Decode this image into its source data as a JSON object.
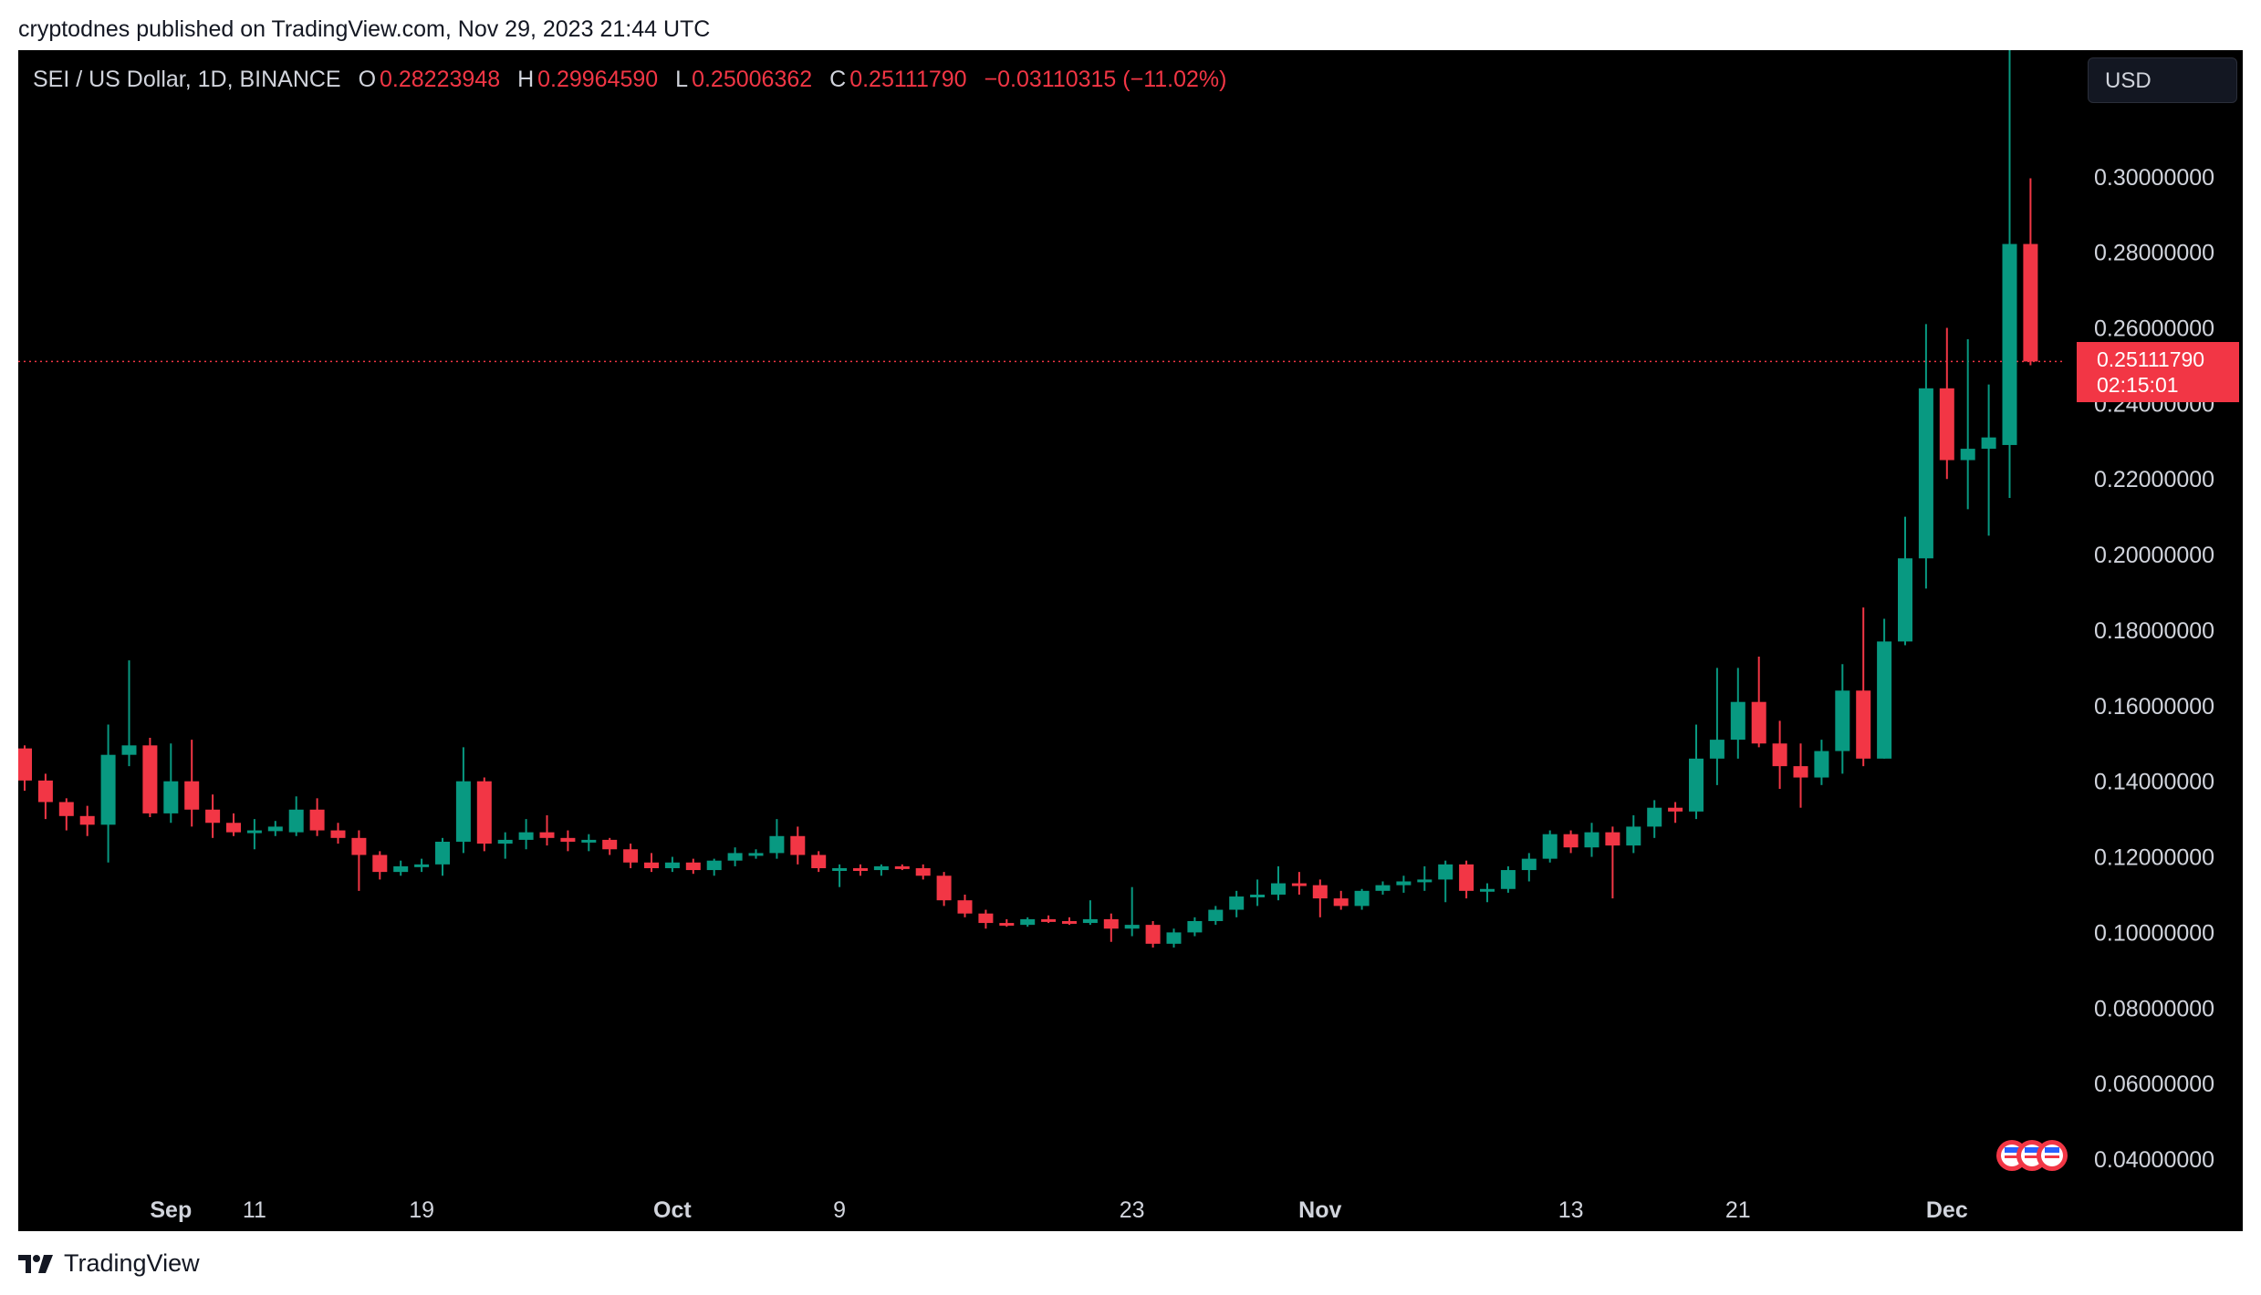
{
  "publisher_text": "cryptodnes published on TradingView.com, Nov 29, 2023 21:44 UTC",
  "symbol": {
    "title": "SEI / US Dollar, 1D, BINANCE",
    "open_label": "O",
    "open": "0.28223948",
    "high_label": "H",
    "high": "0.29964590",
    "low_label": "L",
    "low": "0.25006362",
    "close_label": "C",
    "close": "0.25111790",
    "change": "−0.03110315 (−11.02%)"
  },
  "currency": "USD",
  "price_tag": {
    "price": "0.25111790",
    "countdown": "02:15:01"
  },
  "footer_brand": "TradingView",
  "colors": {
    "up": "#089981",
    "down": "#f23645",
    "background": "#000000",
    "text": "#d1d4dc"
  },
  "chart_data": {
    "type": "candlestick",
    "y_range": [
      0.033,
      0.3335
    ],
    "y_ticks": [
      "0.30000000",
      "0.28000000",
      "0.26000000",
      "0.24000000",
      "0.22000000",
      "0.20000000",
      "0.18000000",
      "0.16000000",
      "0.14000000",
      "0.12000000",
      "0.10000000",
      "0.08000000",
      "0.06000000",
      "0.04000000"
    ],
    "x_labels": [
      {
        "text": "Sep",
        "day": 7,
        "bold": true
      },
      {
        "text": "11",
        "day": 11,
        "bold": false
      },
      {
        "text": "19",
        "day": 19,
        "bold": false
      },
      {
        "text": "Oct",
        "day": 31,
        "bold": true
      },
      {
        "text": "9",
        "day": 39,
        "bold": false
      },
      {
        "text": "23",
        "day": 53,
        "bold": false
      },
      {
        "text": "Nov",
        "day": 62,
        "bold": true
      },
      {
        "text": "13",
        "day": 74,
        "bold": false
      },
      {
        "text": "21",
        "day": 82,
        "bold": false
      },
      {
        "text": "Dec",
        "day": 92,
        "bold": true
      }
    ],
    "last_price": 0.2511179,
    "candles": [
      [
        0.1487,
        0.1495,
        0.1375,
        0.1402
      ],
      [
        0.1402,
        0.142,
        0.13,
        0.1345
      ],
      [
        0.1345,
        0.1355,
        0.127,
        0.1308
      ],
      [
        0.1308,
        0.1335,
        0.1255,
        0.1285
      ],
      [
        0.1285,
        0.155,
        0.1185,
        0.147
      ],
      [
        0.147,
        0.172,
        0.144,
        0.1495
      ],
      [
        0.1495,
        0.1515,
        0.1305,
        0.1315
      ],
      [
        0.1315,
        0.15,
        0.129,
        0.14
      ],
      [
        0.14,
        0.151,
        0.128,
        0.1325
      ],
      [
        0.1325,
        0.1365,
        0.125,
        0.129
      ],
      [
        0.129,
        0.1315,
        0.1255,
        0.1265
      ],
      [
        0.1265,
        0.13,
        0.122,
        0.127
      ],
      [
        0.1268,
        0.1295,
        0.1255,
        0.128
      ],
      [
        0.1265,
        0.136,
        0.1255,
        0.1325
      ],
      [
        0.1325,
        0.1355,
        0.1255,
        0.127
      ],
      [
        0.127,
        0.129,
        0.1235,
        0.125
      ],
      [
        0.125,
        0.127,
        0.111,
        0.1205
      ],
      [
        0.1205,
        0.1215,
        0.114,
        0.116
      ],
      [
        0.116,
        0.119,
        0.115,
        0.1175
      ],
      [
        0.1175,
        0.1195,
        0.116,
        0.118
      ],
      [
        0.118,
        0.125,
        0.115,
        0.124
      ],
      [
        0.124,
        0.149,
        0.121,
        0.14
      ],
      [
        0.14,
        0.141,
        0.1215,
        0.1235
      ],
      [
        0.1235,
        0.1265,
        0.1195,
        0.1245
      ],
      [
        0.1245,
        0.13,
        0.122,
        0.1265
      ],
      [
        0.1265,
        0.131,
        0.123,
        0.125
      ],
      [
        0.125,
        0.127,
        0.1215,
        0.124
      ],
      [
        0.124,
        0.126,
        0.1215,
        0.1245
      ],
      [
        0.1245,
        0.125,
        0.1205,
        0.122
      ],
      [
        0.122,
        0.1235,
        0.117,
        0.1185
      ],
      [
        0.1185,
        0.121,
        0.116,
        0.117
      ],
      [
        0.117,
        0.12,
        0.116,
        0.1185
      ],
      [
        0.1185,
        0.1195,
        0.1155,
        0.1165
      ],
      [
        0.1165,
        0.1195,
        0.115,
        0.119
      ],
      [
        0.119,
        0.1225,
        0.1175,
        0.121
      ],
      [
        0.1205,
        0.122,
        0.1195,
        0.121
      ],
      [
        0.121,
        0.13,
        0.1195,
        0.1255
      ],
      [
        0.1255,
        0.128,
        0.118,
        0.1205
      ],
      [
        0.1205,
        0.1215,
        0.116,
        0.117
      ],
      [
        0.1165,
        0.118,
        0.112,
        0.117
      ],
      [
        0.117,
        0.118,
        0.115,
        0.1165
      ],
      [
        0.1165,
        0.118,
        0.115,
        0.1175
      ],
      [
        0.1175,
        0.118,
        0.1165,
        0.117
      ],
      [
        0.117,
        0.118,
        0.114,
        0.115
      ],
      [
        0.115,
        0.116,
        0.107,
        0.1085
      ],
      [
        0.1085,
        0.11,
        0.104,
        0.105
      ],
      [
        0.105,
        0.106,
        0.101,
        0.1025
      ],
      [
        0.1025,
        0.1035,
        0.1015,
        0.102
      ],
      [
        0.102,
        0.104,
        0.1015,
        0.1035
      ],
      [
        0.1035,
        0.1045,
        0.1025,
        0.103
      ],
      [
        0.103,
        0.104,
        0.102,
        0.1025
      ],
      [
        0.1025,
        0.1085,
        0.102,
        0.1035
      ],
      [
        0.1035,
        0.105,
        0.0975,
        0.101
      ],
      [
        0.101,
        0.112,
        0.099,
        0.102
      ],
      [
        0.102,
        0.103,
        0.096,
        0.097
      ],
      [
        0.097,
        0.101,
        0.096,
        0.1
      ],
      [
        0.1,
        0.104,
        0.099,
        0.103
      ],
      [
        0.103,
        0.107,
        0.102,
        0.106
      ],
      [
        0.106,
        0.111,
        0.104,
        0.1095
      ],
      [
        0.1095,
        0.114,
        0.107,
        0.11
      ],
      [
        0.11,
        0.1175,
        0.1085,
        0.113
      ],
      [
        0.113,
        0.116,
        0.11,
        0.1125
      ],
      [
        0.1125,
        0.114,
        0.104,
        0.109
      ],
      [
        0.109,
        0.111,
        0.106,
        0.107
      ],
      [
        0.107,
        0.1115,
        0.106,
        0.111
      ],
      [
        0.111,
        0.1135,
        0.11,
        0.1125
      ],
      [
        0.1125,
        0.115,
        0.1105,
        0.1135
      ],
      [
        0.1135,
        0.1175,
        0.111,
        0.114
      ],
      [
        0.114,
        0.119,
        0.108,
        0.118
      ],
      [
        0.118,
        0.119,
        0.109,
        0.111
      ],
      [
        0.111,
        0.113,
        0.108,
        0.1115
      ],
      [
        0.1115,
        0.1175,
        0.1105,
        0.1165
      ],
      [
        0.1165,
        0.121,
        0.1135,
        0.1195
      ],
      [
        0.1195,
        0.127,
        0.1185,
        0.126
      ],
      [
        0.126,
        0.127,
        0.121,
        0.1225
      ],
      [
        0.1225,
        0.129,
        0.12,
        0.1265
      ],
      [
        0.1265,
        0.128,
        0.109,
        0.123
      ],
      [
        0.123,
        0.131,
        0.121,
        0.128
      ],
      [
        0.128,
        0.135,
        0.125,
        0.133
      ],
      [
        0.133,
        0.1345,
        0.129,
        0.132
      ],
      [
        0.132,
        0.155,
        0.13,
        0.146
      ],
      [
        0.146,
        0.17,
        0.139,
        0.151
      ],
      [
        0.151,
        0.17,
        0.146,
        0.161
      ],
      [
        0.161,
        0.173,
        0.149,
        0.15
      ],
      [
        0.15,
        0.156,
        0.138,
        0.144
      ],
      [
        0.144,
        0.15,
        0.133,
        0.141
      ],
      [
        0.141,
        0.151,
        0.139,
        0.148
      ],
      [
        0.148,
        0.171,
        0.142,
        0.164
      ],
      [
        0.164,
        0.186,
        0.144,
        0.146
      ],
      [
        0.146,
        0.183,
        0.146,
        0.177
      ],
      [
        0.177,
        0.21,
        0.176,
        0.199
      ],
      [
        0.199,
        0.261,
        0.191,
        0.244
      ],
      [
        0.244,
        0.26,
        0.22,
        0.225
      ],
      [
        0.225,
        0.257,
        0.212,
        0.228
      ],
      [
        0.228,
        0.245,
        0.205,
        0.231
      ],
      [
        0.229,
        0.334,
        0.215,
        0.2822
      ],
      [
        0.2822,
        0.2996,
        0.2501,
        0.2511
      ]
    ]
  }
}
